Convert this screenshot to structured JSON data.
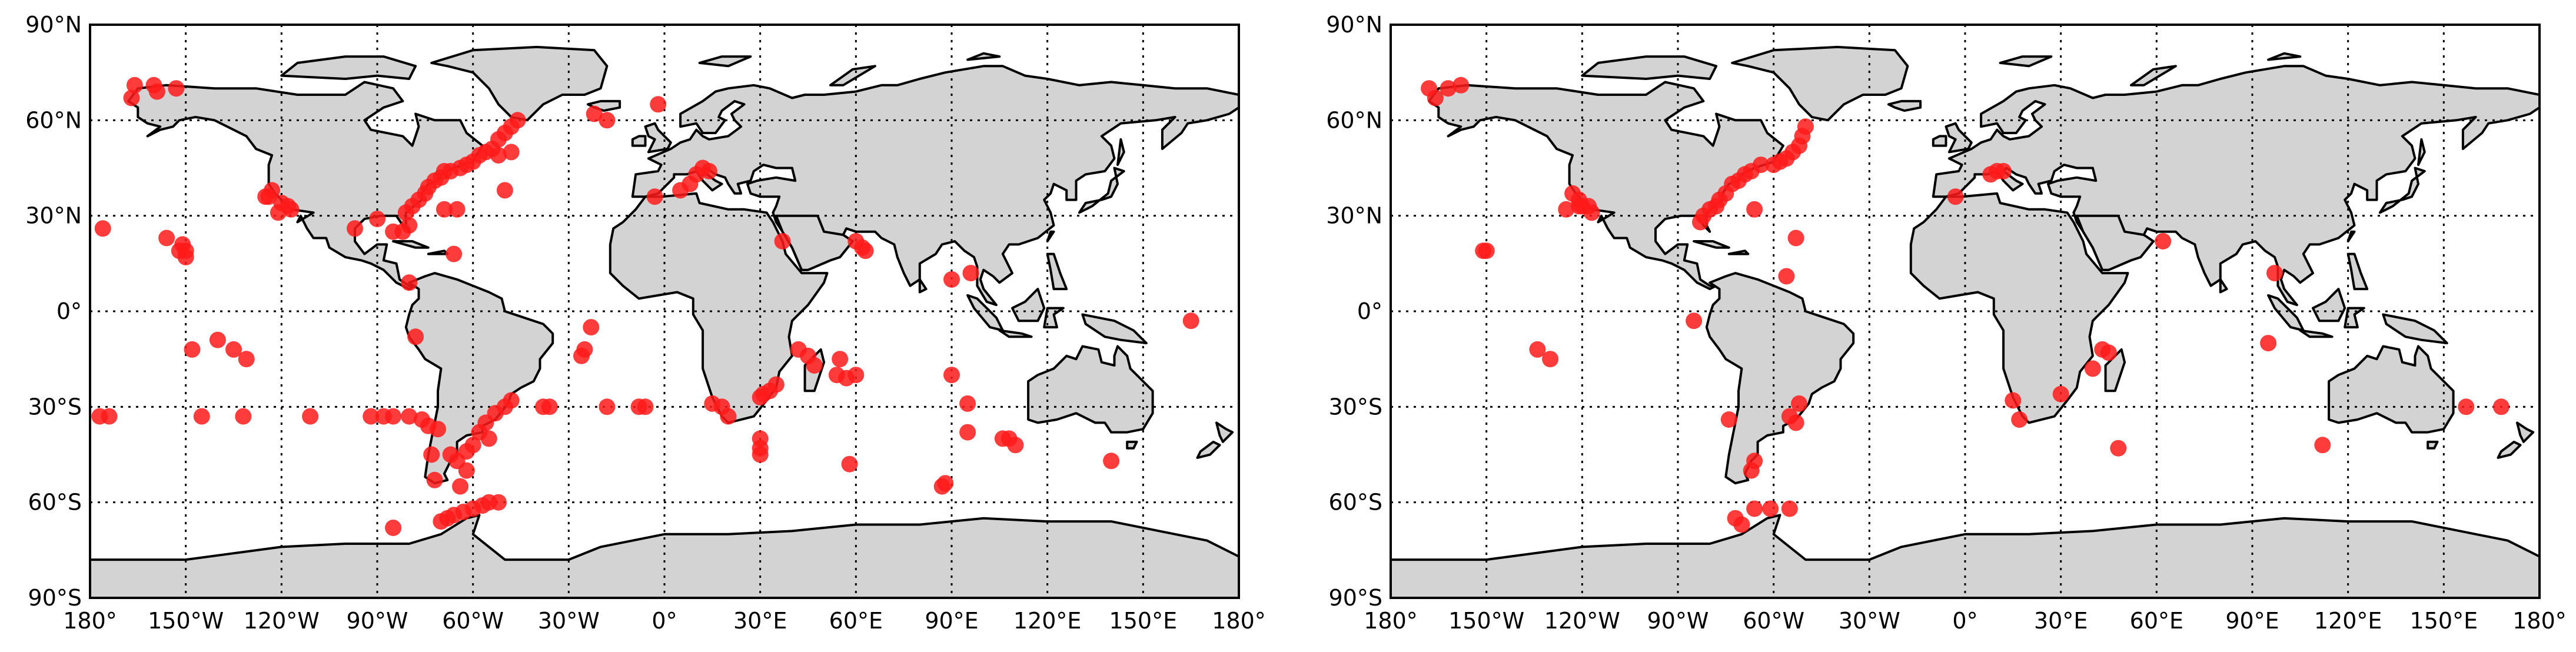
{
  "colors": {
    "land": "#d3d3d3",
    "coast": "#000000",
    "marker": "#ff1a1a",
    "grid": "#000000",
    "background": "#ffffff"
  },
  "axes": {
    "lat_ticks": [
      "90°N",
      "60°N",
      "30°N",
      "0°",
      "30°S",
      "60°S",
      "90°S"
    ],
    "lon_ticks": [
      "180°",
      "150°W",
      "120°W",
      "90°W",
      "60°W",
      "30°W",
      "0°",
      "30°E",
      "60°E",
      "90°E",
      "120°E",
      "150°E",
      "180°"
    ],
    "grid": "dotted",
    "projection": "equirectangular"
  },
  "chart_data": [
    {
      "type": "scatter",
      "xlim": [
        -180,
        180
      ],
      "ylim": [
        -90,
        90
      ],
      "points": [
        [
          -166,
          71
        ],
        [
          -160,
          71
        ],
        [
          -153,
          70
        ],
        [
          -167,
          67
        ],
        [
          -159,
          69
        ],
        [
          -123,
          38
        ],
        [
          -120,
          34
        ],
        [
          -118,
          33
        ],
        [
          -124,
          36
        ],
        [
          -117,
          32
        ],
        [
          -121,
          31
        ],
        [
          -125,
          36
        ],
        [
          -97,
          26
        ],
        [
          -90,
          29
        ],
        [
          -85,
          25
        ],
        [
          -82,
          25
        ],
        [
          -80,
          27
        ],
        [
          -81,
          31
        ],
        [
          -79,
          33
        ],
        [
          -77,
          35
        ],
        [
          -75,
          37
        ],
        [
          -74,
          39
        ],
        [
          -72,
          41
        ],
        [
          -70,
          42
        ],
        [
          -69,
          44
        ],
        [
          -67,
          44
        ],
        [
          -64,
          45
        ],
        [
          -62,
          46
        ],
        [
          -60,
          47
        ],
        [
          -58,
          49
        ],
        [
          -56,
          50
        ],
        [
          -54,
          51
        ],
        [
          -52,
          54
        ],
        [
          -50,
          56
        ],
        [
          -48,
          58
        ],
        [
          -46,
          60
        ],
        [
          -69,
          32
        ],
        [
          -65,
          32
        ],
        [
          -52,
          49
        ],
        [
          -48,
          50
        ],
        [
          -50,
          38
        ],
        [
          -66,
          18
        ],
        [
          -80,
          9
        ],
        [
          -176,
          26
        ],
        [
          -156,
          23
        ],
        [
          -152,
          19
        ],
        [
          -151,
          21
        ],
        [
          -150,
          19
        ],
        [
          -150,
          17
        ],
        [
          -148,
          -12
        ],
        [
          -140,
          -9
        ],
        [
          -135,
          -12
        ],
        [
          -131,
          -15
        ],
        [
          -177,
          -33
        ],
        [
          -174,
          -33
        ],
        [
          -145,
          -33
        ],
        [
          -132,
          -33
        ],
        [
          -111,
          -33
        ],
        [
          -92,
          -33
        ],
        [
          -88,
          -33
        ],
        [
          -85,
          -33
        ],
        [
          -80,
          -33
        ],
        [
          -76,
          -34
        ],
        [
          -74,
          -36
        ],
        [
          -71,
          -37
        ],
        [
          -73,
          -45
        ],
        [
          -72,
          -53
        ],
        [
          -78,
          -8
        ],
        [
          -85,
          -68
        ],
        [
          -70,
          -66
        ],
        [
          -68,
          -65
        ],
        [
          -66,
          -64
        ],
        [
          -63,
          -63
        ],
        [
          -60,
          -62
        ],
        [
          -57,
          -61
        ],
        [
          -55,
          -60
        ],
        [
          -52,
          -60
        ],
        [
          -67,
          -45
        ],
        [
          -65,
          -47
        ],
        [
          -64,
          -55
        ],
        [
          -58,
          -38
        ],
        [
          -56,
          -35
        ],
        [
          -53,
          -32
        ],
        [
          -50,
          -30
        ],
        [
          -55,
          -40
        ],
        [
          -60,
          -42
        ],
        [
          -62,
          -44
        ],
        [
          -48,
          -28
        ],
        [
          -62,
          -50
        ],
        [
          -38,
          -30
        ],
        [
          -36,
          -30
        ],
        [
          -25,
          -12
        ],
        [
          -26,
          -14
        ],
        [
          -23,
          -5
        ],
        [
          -18,
          -30
        ],
        [
          -8,
          -30
        ],
        [
          -6,
          -30
        ],
        [
          -22,
          62
        ],
        [
          -18,
          60
        ],
        [
          -2,
          65
        ],
        [
          -3,
          36
        ],
        [
          5,
          38
        ],
        [
          8,
          40
        ],
        [
          10,
          43
        ],
        [
          12,
          45
        ],
        [
          14,
          44
        ],
        [
          15,
          -29
        ],
        [
          18,
          -30
        ],
        [
          20,
          -33
        ],
        [
          30,
          -27
        ],
        [
          31,
          -26
        ],
        [
          33,
          -25
        ],
        [
          35,
          -23
        ],
        [
          42,
          -12
        ],
        [
          45,
          -14
        ],
        [
          47,
          -17
        ],
        [
          55,
          -15
        ],
        [
          54,
          -20
        ],
        [
          57,
          -21
        ],
        [
          60,
          -20
        ],
        [
          30,
          -40
        ],
        [
          30,
          -43
        ],
        [
          30,
          -45
        ],
        [
          58,
          -48
        ],
        [
          37,
          22
        ],
        [
          60,
          22
        ],
        [
          62,
          20
        ],
        [
          63,
          19
        ],
        [
          96,
          12
        ],
        [
          90,
          10
        ],
        [
          87,
          -55
        ],
        [
          88,
          -54
        ],
        [
          90,
          -20
        ],
        [
          95,
          -29
        ],
        [
          95,
          -38
        ],
        [
          106,
          -40
        ],
        [
          108,
          -40
        ],
        [
          110,
          -42
        ],
        [
          140,
          -47
        ],
        [
          165,
          -3
        ]
      ]
    },
    {
      "type": "scatter",
      "xlim": [
        -180,
        180
      ],
      "ylim": [
        -90,
        90
      ],
      "points": [
        [
          -168,
          70
        ],
        [
          -162,
          70
        ],
        [
          -158,
          71
        ],
        [
          -166,
          67
        ],
        [
          -123,
          37
        ],
        [
          -121,
          35
        ],
        [
          -120,
          33
        ],
        [
          -118,
          33
        ],
        [
          -125,
          32
        ],
        [
          -117,
          31
        ],
        [
          -121,
          33
        ],
        [
          -150,
          19
        ],
        [
          -151,
          19
        ],
        [
          -134,
          -12
        ],
        [
          -130,
          -15
        ],
        [
          -83,
          28
        ],
        [
          -82,
          30
        ],
        [
          -80,
          32
        ],
        [
          -78,
          33
        ],
        [
          -77,
          35
        ],
        [
          -75,
          37
        ],
        [
          -73,
          40
        ],
        [
          -71,
          41
        ],
        [
          -69,
          43
        ],
        [
          -67,
          44
        ],
        [
          -64,
          46
        ],
        [
          -60,
          46
        ],
        [
          -58,
          47
        ],
        [
          -56,
          48
        ],
        [
          -54,
          50
        ],
        [
          -52,
          52
        ],
        [
          -51,
          55
        ],
        [
          -50,
          58
        ],
        [
          -66,
          32
        ],
        [
          -53,
          23
        ],
        [
          -56,
          11
        ],
        [
          -85,
          -3
        ],
        [
          -74,
          -34
        ],
        [
          -66,
          -47
        ],
        [
          -67,
          -50
        ],
        [
          -53,
          -35
        ],
        [
          -55,
          -33
        ],
        [
          -52,
          -29
        ],
        [
          -72,
          -65
        ],
        [
          -70,
          -67
        ],
        [
          -66,
          -62
        ],
        [
          -61,
          -62
        ],
        [
          -55,
          -62
        ],
        [
          -3,
          36
        ],
        [
          8,
          43
        ],
        [
          10,
          44
        ],
        [
          12,
          44
        ],
        [
          15,
          -28
        ],
        [
          17,
          -34
        ],
        [
          30,
          -26
        ],
        [
          40,
          -18
        ],
        [
          43,
          -12
        ],
        [
          45,
          -13
        ],
        [
          48,
          -43
        ],
        [
          62,
          22
        ],
        [
          97,
          12
        ],
        [
          95,
          -10
        ],
        [
          112,
          -42
        ],
        [
          157,
          -30
        ],
        [
          168,
          -30
        ]
      ]
    }
  ]
}
